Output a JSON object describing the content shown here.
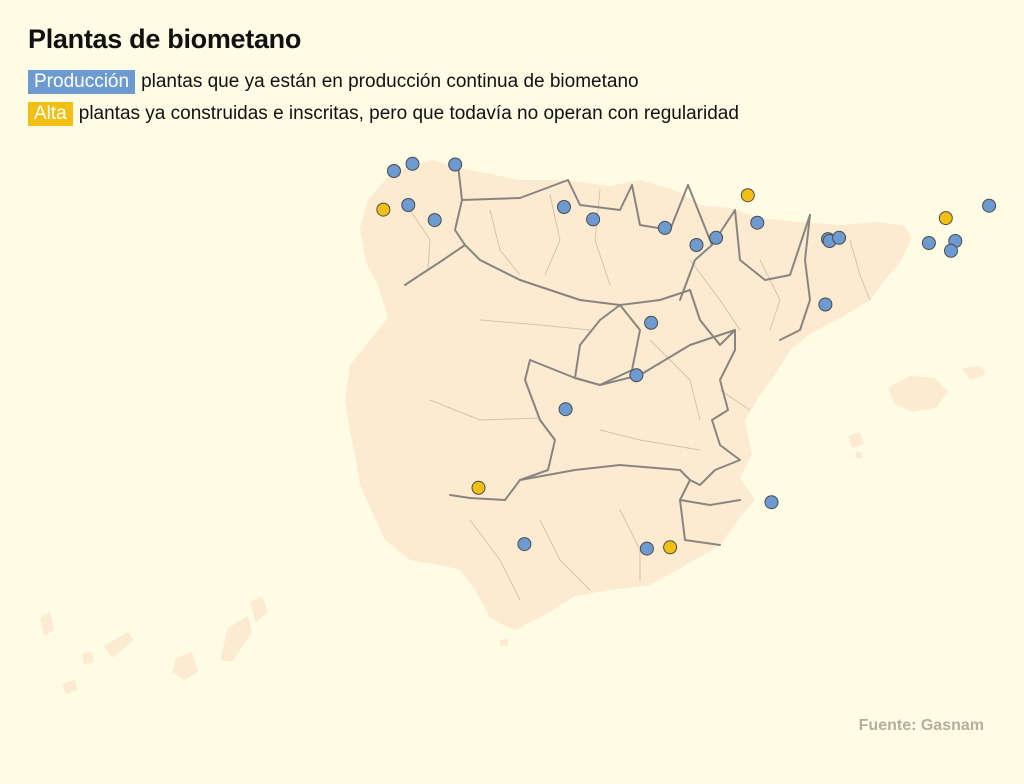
{
  "title": "Plantas de biometano",
  "legend": [
    {
      "key": "produccion",
      "label": "Producción",
      "description": "plantas que ya están en producción continua de biometano",
      "color": "#6d9bd1"
    },
    {
      "key": "alta",
      "label": "Alta",
      "description": "plantas ya construidas e inscritas, pero que todavía no operan con regularidad",
      "color": "#f2c014"
    }
  ],
  "source": "Fuente: Gasnam",
  "colors": {
    "background": "#fffce5",
    "land": "#fdebd1",
    "border": "#888580",
    "minor_border": "#d2c4ad"
  },
  "plants": [
    {
      "status": "produccion",
      "lon": -8.55,
      "lat": 43.42
    },
    {
      "status": "produccion",
      "lon": -8.2,
      "lat": 43.53
    },
    {
      "status": "produccion",
      "lon": -7.39,
      "lat": 43.52
    },
    {
      "status": "produccion",
      "lon": -8.28,
      "lat": 42.9
    },
    {
      "status": "produccion",
      "lon": -7.78,
      "lat": 42.67
    },
    {
      "status": "produccion",
      "lon": -5.33,
      "lat": 42.87
    },
    {
      "status": "produccion",
      "lon": -4.78,
      "lat": 42.68
    },
    {
      "status": "produccion",
      "lon": -3.42,
      "lat": 42.55
    },
    {
      "status": "produccion",
      "lon": -2.82,
      "lat": 42.29
    },
    {
      "status": "produccion",
      "lon": -2.45,
      "lat": 42.4
    },
    {
      "status": "produccion",
      "lon": -1.67,
      "lat": 42.63
    },
    {
      "status": "produccion",
      "lon": -0.33,
      "lat": 42.38
    },
    {
      "status": "produccion",
      "lon": -0.3,
      "lat": 42.35
    },
    {
      "status": "produccion",
      "lon": -0.12,
      "lat": 42.4
    },
    {
      "status": "produccion",
      "lon": 2.72,
      "lat": 42.89
    },
    {
      "status": "produccion",
      "lon": 1.58,
      "lat": 42.32
    },
    {
      "status": "produccion",
      "lon": 2.08,
      "lat": 42.35
    },
    {
      "status": "produccion",
      "lon": 2.0,
      "lat": 42.2
    },
    {
      "status": "produccion",
      "lon": -0.38,
      "lat": 41.38
    },
    {
      "status": "produccion",
      "lon": -3.68,
      "lat": 41.1
    },
    {
      "status": "produccion",
      "lon": -3.96,
      "lat": 40.3
    },
    {
      "status": "produccion",
      "lon": -5.3,
      "lat": 39.78
    },
    {
      "status": "produccion",
      "lon": -1.4,
      "lat": 38.36
    },
    {
      "status": "produccion",
      "lon": -6.08,
      "lat": 37.72
    },
    {
      "status": "produccion",
      "lon": -3.76,
      "lat": 37.65
    },
    {
      "status": "alta",
      "lon": -8.75,
      "lat": 42.83
    },
    {
      "status": "alta",
      "lon": -1.85,
      "lat": 43.05
    },
    {
      "status": "alta",
      "lon": 1.9,
      "lat": 42.7
    },
    {
      "status": "alta",
      "lon": -6.95,
      "lat": 38.58
    },
    {
      "status": "alta",
      "lon": -3.32,
      "lat": 37.67
    }
  ]
}
